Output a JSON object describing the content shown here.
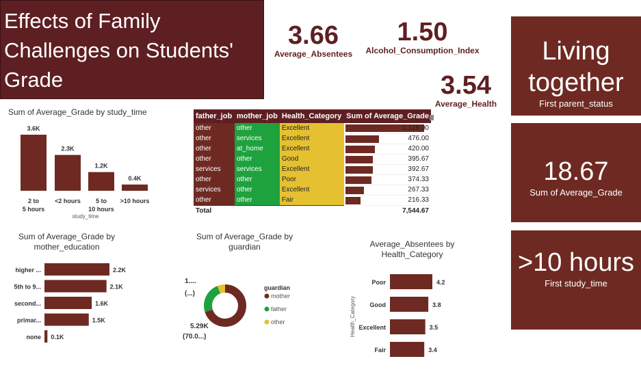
{
  "title": "Effects of Family Challenges on Students' Grade",
  "kpis": {
    "absentees": {
      "value": "3.66",
      "label": "Average_Absentees"
    },
    "alcohol": {
      "value": "1.50",
      "label": "Alcohol_Consumption_Index"
    },
    "health": {
      "value": "3.54",
      "label": "Average_Health"
    }
  },
  "cards": {
    "parent_status": {
      "value": "Living together",
      "label": "First parent_status"
    },
    "avg_grade": {
      "value": "18.67",
      "label": "Sum of Average_Grade"
    },
    "study_time": {
      "value": ">10 hours",
      "label": "First study_time"
    }
  },
  "table": {
    "more_icon": "...",
    "headers": [
      "father_job",
      "mother_job",
      "Health_Category",
      "Sum of Average_Grade"
    ],
    "rows": [
      {
        "father_job": "other",
        "mother_job": "other",
        "health": "Excellent",
        "grade": "1,128.00",
        "value": 1128.0
      },
      {
        "father_job": "other",
        "mother_job": "services",
        "health": "Excellent",
        "grade": "476.00",
        "value": 476.0
      },
      {
        "father_job": "other",
        "mother_job": "at_home",
        "health": "Excellent",
        "grade": "420.00",
        "value": 420.0
      },
      {
        "father_job": "other",
        "mother_job": "other",
        "health": "Good",
        "grade": "395.67",
        "value": 395.67
      },
      {
        "father_job": "services",
        "mother_job": "services",
        "health": "Excellent",
        "grade": "392.67",
        "value": 392.67
      },
      {
        "father_job": "other",
        "mother_job": "other",
        "health": "Poor",
        "grade": "374.33",
        "value": 374.33
      },
      {
        "father_job": "services",
        "mother_job": "other",
        "health": "Excellent",
        "grade": "267.33",
        "value": 267.33
      },
      {
        "father_job": "other",
        "mother_job": "other",
        "health": "Fair",
        "grade": "216.33",
        "value": 216.33
      }
    ],
    "total_label": "Total",
    "total_value": "7,544.67"
  },
  "colors": {
    "maroon": "#6e2a22",
    "title_bg": "#5e1f22",
    "green": "#1ea23d",
    "yellow": "#e5c132",
    "father": "#1ea23d",
    "other": "#e5c132"
  },
  "chart_data": [
    {
      "type": "bar",
      "title": "Sum of Average_Grade by study_time",
      "xlabel": "study_time",
      "categories": [
        "2 to 5 hours",
        "<2 hours",
        "5 to 10 hours",
        ">10 hours"
      ],
      "values": [
        3600,
        2300,
        1200,
        400
      ],
      "labels": [
        "3.6K",
        "2.3K",
        "1.2K",
        "0.4K"
      ]
    },
    {
      "type": "bar",
      "orientation": "horizontal",
      "title": "Sum of Average_Grade by mother_education",
      "categories": [
        "higher ...",
        "5th to 9...",
        "second...",
        "primar...",
        "none"
      ],
      "values": [
        2200,
        2100,
        1600,
        1500,
        100
      ],
      "labels": [
        "2.2K",
        "2.1K",
        "1.6K",
        "1.5K",
        "0.1K"
      ]
    },
    {
      "type": "pie",
      "title": "Sum of Average_Grade by guardian",
      "legend_title": "guardian",
      "categories": [
        "mother",
        "father",
        "other"
      ],
      "values": [
        0.7,
        0.24,
        0.06
      ],
      "labels": [
        "5.29K (70.0...)",
        "1.... (...)"
      ]
    },
    {
      "type": "bar",
      "orientation": "horizontal",
      "title": "Average_Absentees by Health_Category",
      "ylabel": "Health_Category",
      "categories": [
        "Poor",
        "Good",
        "Excellent",
        "Fair"
      ],
      "values": [
        4.2,
        3.8,
        3.5,
        3.4
      ],
      "labels": [
        "4.2",
        "3.8",
        "3.5",
        "3.4"
      ]
    }
  ]
}
